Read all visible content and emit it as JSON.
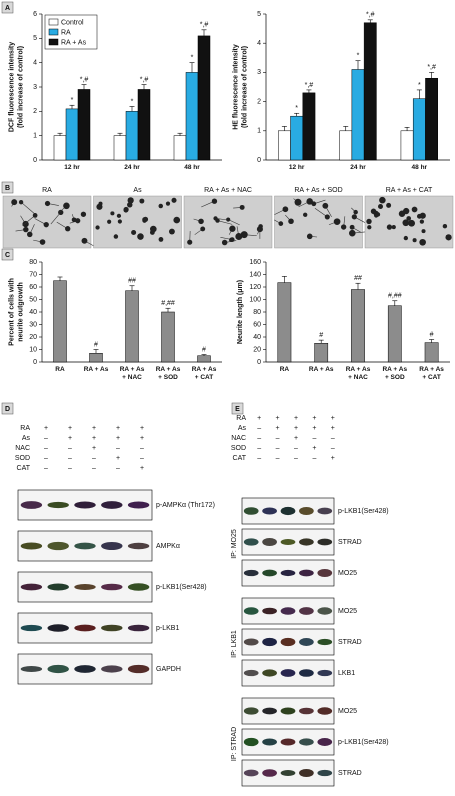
{
  "panel_labels": [
    "A",
    "B",
    "C",
    "D",
    "E"
  ],
  "chart_data": [
    {
      "type": "bar",
      "ylabel": [
        "DCF fluorescence intensity",
        "(fold increase of control)"
      ],
      "categories": [
        "12 hr",
        "24 hr",
        "48 hr"
      ],
      "series": [
        {
          "name": "Control",
          "color": "#ffffff",
          "values": [
            1,
            1,
            1
          ],
          "errors": [
            0.1,
            0.1,
            0.1
          ]
        },
        {
          "name": "RA",
          "color": "#29abe2",
          "values": [
            2.1,
            2.0,
            3.6
          ],
          "errors": [
            0.15,
            0.2,
            0.4
          ],
          "markers": [
            "*",
            "*",
            "*"
          ]
        },
        {
          "name": "RA + As",
          "color": "#111111",
          "values": [
            2.9,
            2.9,
            5.1
          ],
          "errors": [
            0.2,
            0.2,
            0.25
          ],
          "markers": [
            "*,#",
            "*,#",
            "*,#"
          ]
        }
      ],
      "ylim": [
        0,
        6
      ],
      "yticks": [
        0,
        1,
        2,
        3,
        4,
        5,
        6
      ],
      "legend": "upper left"
    },
    {
      "type": "bar",
      "ylabel": [
        "HE fluorescence intensity",
        "(fold increase of control)"
      ],
      "categories": [
        "12 hr",
        "24 hr",
        "48 hr"
      ],
      "series": [
        {
          "name": "Control",
          "color": "#ffffff",
          "values": [
            1,
            1,
            1
          ],
          "errors": [
            0.15,
            0.15,
            0.12
          ]
        },
        {
          "name": "RA",
          "color": "#29abe2",
          "values": [
            1.5,
            3.1,
            2.1
          ],
          "errors": [
            0.1,
            0.3,
            0.3
          ],
          "markers": [
            "*",
            "*",
            "*"
          ]
        },
        {
          "name": "RA + As",
          "color": "#111111",
          "values": [
            2.3,
            4.7,
            2.8
          ],
          "errors": [
            0.1,
            0.1,
            0.2
          ],
          "markers": [
            "*,#",
            "*,#",
            "*,#"
          ]
        }
      ],
      "ylim": [
        0,
        5
      ],
      "yticks": [
        0,
        1,
        2,
        3,
        4,
        5
      ]
    },
    {
      "type": "bar",
      "ylabel": [
        "Percent of cells with",
        "neurite outgrowth"
      ],
      "categories": [
        "RA",
        "RA + As",
        "RA + As\n+ NAC",
        "RA + As\n+ SOD",
        "RA + As\n+ CAT"
      ],
      "values": [
        65,
        7,
        57,
        40,
        5
      ],
      "errors": [
        3,
        3,
        4,
        3,
        1
      ],
      "markers": [
        null,
        "#",
        "##",
        "#,##",
        "#"
      ],
      "color": "#8c8c8c",
      "ylim": [
        0,
        80
      ],
      "yticks": [
        0,
        10,
        20,
        30,
        40,
        50,
        60,
        70,
        80
      ]
    },
    {
      "type": "bar",
      "ylabel": [
        "Neurite length (μm)"
      ],
      "categories": [
        "RA",
        "RA + As",
        "RA + As\n+ NAC",
        "RA + As\n+ SOD",
        "RA + As\n+ CAT"
      ],
      "values": [
        127,
        30,
        116,
        90,
        31
      ],
      "errors": [
        10,
        5,
        10,
        8,
        5
      ],
      "markers": [
        null,
        "#",
        "##",
        "#,##",
        "#"
      ],
      "color": "#8c8c8c",
      "ylim": [
        0,
        160
      ],
      "yticks": [
        0,
        20,
        40,
        60,
        80,
        100,
        120,
        140,
        160
      ]
    }
  ],
  "micrographs": [
    "RA",
    "As",
    "RA + As + NAC",
    "RA + As + SOD",
    "RA + As + CAT"
  ],
  "panel_d": {
    "treatments": [
      {
        "name": "RA",
        "signs": [
          "+",
          "+",
          "+",
          "+",
          "+"
        ]
      },
      {
        "name": "As",
        "signs": [
          "–",
          "+",
          "+",
          "+",
          "+"
        ]
      },
      {
        "name": "NAC",
        "signs": [
          "–",
          "–",
          "+",
          "–",
          "–"
        ]
      },
      {
        "name": "SOD",
        "signs": [
          "–",
          "–",
          "–",
          "+",
          "–"
        ]
      },
      {
        "name": "CAT",
        "signs": [
          "–",
          "–",
          "–",
          "–",
          "+"
        ]
      }
    ],
    "blots": [
      "p-AMPKα (Thr172)",
      "AMPKα",
      "p-LKB1(Ser428)",
      "p-LKB1",
      "GAPDH"
    ]
  },
  "panel_e": {
    "treatments": [
      {
        "name": "RA",
        "signs": [
          "+",
          "+",
          "+",
          "+",
          "+"
        ]
      },
      {
        "name": "As",
        "signs": [
          "–",
          "+",
          "+",
          "+",
          "+"
        ]
      },
      {
        "name": "NAC",
        "signs": [
          "–",
          "–",
          "+",
          "–",
          "–"
        ]
      },
      {
        "name": "SOD",
        "signs": [
          "–",
          "–",
          "–",
          "+",
          "–"
        ]
      },
      {
        "name": "CAT",
        "signs": [
          "–",
          "–",
          "–",
          "–",
          "+"
        ]
      }
    ],
    "groups": [
      {
        "ip": "IP: MO25",
        "blots": [
          "p-LKB1(Ser428)",
          "STRAD",
          "MO25"
        ]
      },
      {
        "ip": "IP: LKB1",
        "blots": [
          "MO25",
          "STRAD",
          "LKB1"
        ]
      },
      {
        "ip": "IP: STRAD",
        "blots": [
          "MO25",
          "p-LKB1(Ser428)",
          "STRAD"
        ]
      }
    ]
  }
}
